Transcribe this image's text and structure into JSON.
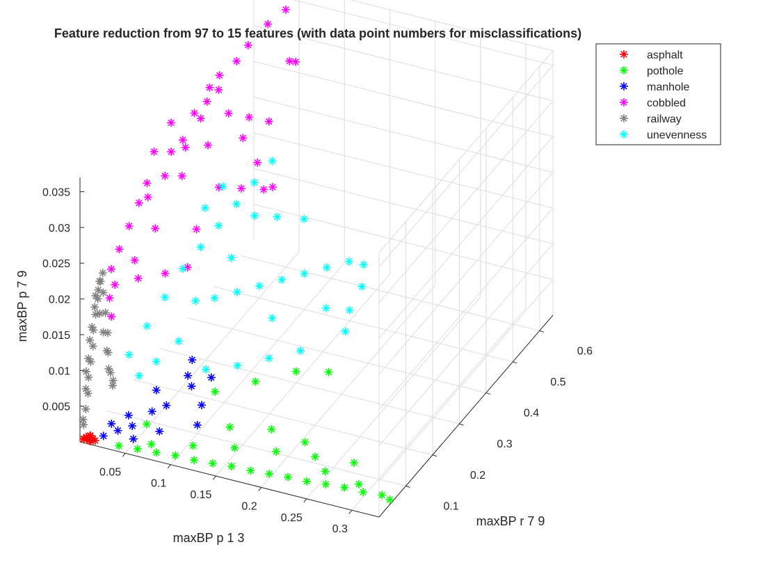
{
  "chart_data": {
    "type": "scatter3d",
    "title": "Feature reduction from 97 to 15 features (with data point numbers for misclassifications)",
    "xlabel": "maxBP p 1 3",
    "ylabel": "maxBP r 7 9",
    "zlabel": "maxBP p 7 9",
    "x_ticks": [
      "0.05",
      "0.1",
      "0.15",
      "0.2",
      "0.25",
      "0.3"
    ],
    "y_ticks": [
      "0.1",
      "0.2",
      "0.3",
      "0.4",
      "0.5",
      "0.6"
    ],
    "z_ticks": [
      "0.005",
      "0.01",
      "0.015",
      "0.02",
      "0.025",
      "0.03",
      "0.035"
    ],
    "xlim": [
      0,
      0.33
    ],
    "ylim": [
      0,
      0.65
    ],
    "zlim": [
      0,
      0.037
    ],
    "grid": true,
    "legend_position": "top-right",
    "marker": "asterisk",
    "series": [
      {
        "name": "asphalt",
        "color": "#ff0000",
        "points": [
          [
            0.003,
            0.004,
            0.0003
          ],
          [
            0.006,
            0.006,
            0.0004
          ],
          [
            0.009,
            0.005,
            0.0003
          ],
          [
            0.012,
            0.008,
            0.0005
          ],
          [
            0.004,
            0.01,
            0.0004
          ],
          [
            0.008,
            0.012,
            0.0006
          ],
          [
            0.015,
            0.006,
            0.0004
          ],
          [
            0.002,
            0.007,
            0.0002
          ],
          [
            0.011,
            0.003,
            0.0003
          ],
          [
            0.007,
            0.014,
            0.0005
          ]
        ]
      },
      {
        "name": "pothole",
        "color": "#00ff00",
        "points": [
          [
            0.04,
            0.01,
            0.0003
          ],
          [
            0.06,
            0.012,
            0.0004
          ],
          [
            0.08,
            0.015,
            0.0004
          ],
          [
            0.1,
            0.018,
            0.0005
          ],
          [
            0.12,
            0.02,
            0.0004
          ],
          [
            0.14,
            0.022,
            0.0005
          ],
          [
            0.16,
            0.025,
            0.0006
          ],
          [
            0.18,
            0.028,
            0.0005
          ],
          [
            0.2,
            0.03,
            0.0006
          ],
          [
            0.22,
            0.032,
            0.0007
          ],
          [
            0.24,
            0.035,
            0.0006
          ],
          [
            0.26,
            0.038,
            0.0007
          ],
          [
            0.28,
            0.04,
            0.0008
          ],
          [
            0.3,
            0.042,
            0.0007
          ],
          [
            0.32,
            0.045,
            0.0008
          ],
          [
            0.33,
            0.04,
            0.0007
          ],
          [
            0.07,
            0.03,
            0.0006
          ],
          [
            0.11,
            0.05,
            0.0008
          ],
          [
            0.15,
            0.07,
            0.0009
          ],
          [
            0.19,
            0.09,
            0.0008
          ],
          [
            0.23,
            0.1,
            0.0009
          ],
          [
            0.27,
            0.11,
            0.0009
          ],
          [
            0.13,
            0.12,
            0.001
          ],
          [
            0.17,
            0.14,
            0.0011
          ],
          [
            0.21,
            0.13,
            0.001
          ],
          [
            0.09,
            0.2,
            0.0012
          ],
          [
            0.12,
            0.25,
            0.0014
          ],
          [
            0.15,
            0.3,
            0.0016
          ],
          [
            0.18,
            0.32,
            0.0016
          ],
          [
            0.05,
            0.08,
            0.0006
          ],
          [
            0.25,
            0.07,
            0.0008
          ],
          [
            0.29,
            0.06,
            0.0007
          ]
        ]
      },
      {
        "name": "manhole",
        "color": "#0000ff",
        "points": [
          [
            0.02,
            0.02,
            0.0006
          ],
          [
            0.03,
            0.04,
            0.0008
          ],
          [
            0.04,
            0.06,
            0.0009
          ],
          [
            0.05,
            0.03,
            0.0007
          ],
          [
            0.03,
            0.08,
            0.0012
          ],
          [
            0.05,
            0.1,
            0.0015
          ],
          [
            0.06,
            0.12,
            0.0018
          ],
          [
            0.04,
            0.15,
            0.002
          ],
          [
            0.07,
            0.18,
            0.0022
          ],
          [
            0.06,
            0.2,
            0.0025
          ],
          [
            0.08,
            0.22,
            0.002
          ],
          [
            0.05,
            0.25,
            0.0022
          ],
          [
            0.09,
            0.15,
            0.0015
          ],
          [
            0.1,
            0.1,
            0.0012
          ],
          [
            0.02,
            0.05,
            0.001
          ],
          [
            0.07,
            0.06,
            0.0011
          ]
        ]
      },
      {
        "name": "cobbled",
        "color": "#ff00ff",
        "points": [
          [
            0.005,
            0.1,
            0.02
          ],
          [
            0.008,
            0.12,
            0.022
          ],
          [
            0.01,
            0.15,
            0.024
          ],
          [
            0.012,
            0.18,
            0.026
          ],
          [
            0.015,
            0.2,
            0.028
          ],
          [
            0.01,
            0.22,
            0.025
          ],
          [
            0.02,
            0.25,
            0.027
          ],
          [
            0.018,
            0.28,
            0.029
          ],
          [
            0.025,
            0.3,
            0.03
          ],
          [
            0.022,
            0.32,
            0.028
          ],
          [
            0.03,
            0.35,
            0.031
          ],
          [
            0.028,
            0.38,
            0.032
          ],
          [
            0.035,
            0.4,
            0.033
          ],
          [
            0.03,
            0.42,
            0.034
          ],
          [
            0.04,
            0.45,
            0.035
          ],
          [
            0.038,
            0.5,
            0.035
          ],
          [
            0.045,
            0.55,
            0.036
          ],
          [
            0.05,
            0.6,
            0.036
          ],
          [
            0.06,
            0.58,
            0.03
          ],
          [
            0.055,
            0.62,
            0.028
          ],
          [
            0.05,
            0.35,
            0.022
          ],
          [
            0.06,
            0.4,
            0.02
          ],
          [
            0.07,
            0.45,
            0.018
          ],
          [
            0.065,
            0.5,
            0.016
          ],
          [
            0.04,
            0.3,
            0.018
          ],
          [
            0.035,
            0.2,
            0.016
          ],
          [
            0.045,
            0.25,
            0.015
          ],
          [
            0.02,
            0.15,
            0.017
          ],
          [
            0.015,
            0.08,
            0.019
          ],
          [
            0.025,
            0.12,
            0.021
          ],
          [
            0.03,
            0.18,
            0.023
          ],
          [
            0.02,
            0.36,
            0.031
          ],
          [
            0.012,
            0.3,
            0.032
          ],
          [
            0.008,
            0.25,
            0.03
          ],
          [
            0.055,
            0.52,
            0.024
          ],
          [
            0.045,
            0.48,
            0.026
          ],
          [
            0.04,
            0.42,
            0.029
          ],
          [
            0.035,
            0.36,
            0.027
          ],
          [
            0.05,
            0.44,
            0.025
          ],
          [
            0.03,
            0.28,
            0.026
          ],
          [
            0.02,
            0.05,
            0.016
          ],
          [
            0.015,
            0.06,
            0.018
          ],
          [
            0.06,
            0.46,
            0.021
          ],
          [
            0.025,
            0.4,
            0.033
          ]
        ]
      },
      {
        "name": "railway",
        "color": "#808080",
        "points": [
          [
            0.001,
            0.01,
            0.002
          ],
          [
            0.002,
            0.015,
            0.004
          ],
          [
            0.003,
            0.02,
            0.006
          ],
          [
            0.002,
            0.025,
            0.008
          ],
          [
            0.003,
            0.03,
            0.01
          ],
          [
            0.004,
            0.035,
            0.012
          ],
          [
            0.003,
            0.04,
            0.014
          ],
          [
            0.004,
            0.045,
            0.016
          ],
          [
            0.005,
            0.05,
            0.018
          ],
          [
            0.004,
            0.055,
            0.019
          ],
          [
            0.005,
            0.06,
            0.02
          ],
          [
            0.006,
            0.065,
            0.021
          ],
          [
            0.005,
            0.07,
            0.018
          ],
          [
            0.006,
            0.075,
            0.015
          ],
          [
            0.007,
            0.08,
            0.012
          ],
          [
            0.006,
            0.085,
            0.009
          ],
          [
            0.007,
            0.09,
            0.006
          ],
          [
            0.008,
            0.095,
            0.004
          ],
          [
            0.002,
            0.005,
            0.003
          ],
          [
            0.003,
            0.012,
            0.007
          ],
          [
            0.004,
            0.018,
            0.011
          ],
          [
            0.005,
            0.028,
            0.015
          ],
          [
            0.006,
            0.038,
            0.019
          ],
          [
            0.007,
            0.05,
            0.016
          ],
          [
            0.008,
            0.06,
            0.013
          ],
          [
            0.009,
            0.07,
            0.01
          ],
          [
            0.008,
            0.08,
            0.007
          ],
          [
            0.01,
            0.09,
            0.005
          ],
          [
            0.001,
            0.02,
            0.009
          ],
          [
            0.002,
            0.03,
            0.013
          ],
          [
            0.003,
            0.045,
            0.017
          ],
          [
            0.004,
            0.06,
            0.02
          ]
        ]
      },
      {
        "name": "unevenness",
        "color": "#00ffff",
        "points": [
          [
            0.01,
            0.15,
            0.006
          ],
          [
            0.015,
            0.2,
            0.008
          ],
          [
            0.02,
            0.25,
            0.01
          ],
          [
            0.025,
            0.3,
            0.012
          ],
          [
            0.03,
            0.35,
            0.013
          ],
          [
            0.035,
            0.4,
            0.014
          ],
          [
            0.04,
            0.45,
            0.015
          ],
          [
            0.045,
            0.5,
            0.016
          ],
          [
            0.05,
            0.55,
            0.017
          ],
          [
            0.06,
            0.3,
            0.009
          ],
          [
            0.07,
            0.35,
            0.008
          ],
          [
            0.08,
            0.4,
            0.007
          ],
          [
            0.09,
            0.45,
            0.006
          ],
          [
            0.1,
            0.5,
            0.005
          ],
          [
            0.11,
            0.55,
            0.004
          ],
          [
            0.12,
            0.6,
            0.003
          ],
          [
            0.13,
            0.62,
            0.002
          ],
          [
            0.14,
            0.58,
            0.001
          ],
          [
            0.15,
            0.5,
            0.0015
          ],
          [
            0.16,
            0.45,
            0.001
          ],
          [
            0.08,
            0.2,
            0.004
          ],
          [
            0.1,
            0.25,
            0.003
          ],
          [
            0.12,
            0.3,
            0.0025
          ],
          [
            0.14,
            0.35,
            0.002
          ],
          [
            0.05,
            0.2,
            0.007
          ],
          [
            0.04,
            0.15,
            0.006
          ],
          [
            0.03,
            0.12,
            0.005
          ],
          [
            0.06,
            0.45,
            0.014
          ],
          [
            0.07,
            0.5,
            0.012
          ],
          [
            0.055,
            0.38,
            0.011
          ],
          [
            0.045,
            0.28,
            0.009
          ],
          [
            0.085,
            0.55,
            0.01
          ],
          [
            0.02,
            0.4,
            0.016
          ],
          [
            0.025,
            0.45,
            0.017
          ],
          [
            0.1,
            0.38,
            0.004
          ],
          [
            0.13,
            0.48,
            0.002
          ]
        ]
      }
    ]
  }
}
